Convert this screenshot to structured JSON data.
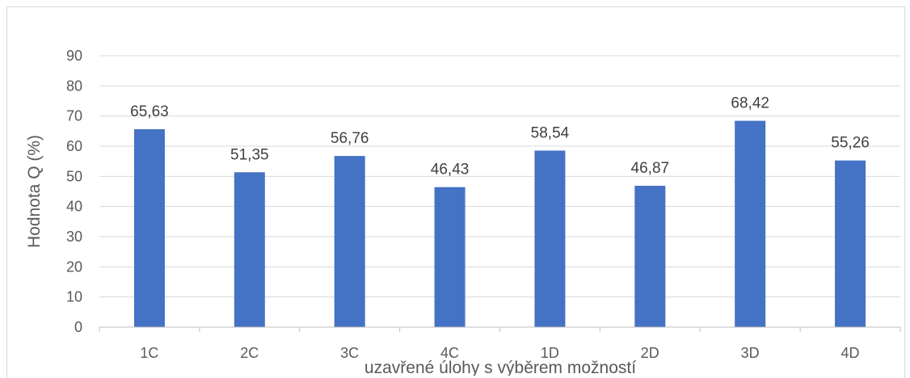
{
  "chart_data": {
    "type": "bar",
    "categories": [
      "1C",
      "2C",
      "3C",
      "4C",
      "1D",
      "2D",
      "3D",
      "4D"
    ],
    "values": [
      65.63,
      51.35,
      56.76,
      46.43,
      58.54,
      46.87,
      68.42,
      55.26
    ],
    "data_labels": [
      "65,63",
      "51,35",
      "56,76",
      "46,43",
      "58,54",
      "46,87",
      "68,42",
      "55,26"
    ],
    "xlabel": "uzavřené úlohy s výběrem možností",
    "ylabel": "Hodnota Q (%)",
    "ylim": [
      0,
      90
    ],
    "yticks": [
      0,
      10,
      20,
      30,
      40,
      50,
      60,
      70,
      80,
      90
    ],
    "grid": true,
    "colors": {
      "bar": "#4472c4",
      "grid": "#d9d9d9",
      "axis": "#bfbfbf"
    }
  }
}
